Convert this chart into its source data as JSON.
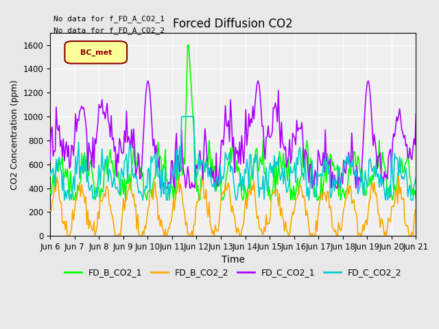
{
  "title": "Forced Diffusion CO2",
  "xlabel": "Time",
  "ylabel": "CO2 Concentration (ppm)",
  "ylim": [
    0,
    1700
  ],
  "yticks": [
    0,
    200,
    400,
    600,
    800,
    1000,
    1200,
    1400,
    1600
  ],
  "text_no_data_1": "No data for f_FD_A_CO2_1",
  "text_no_data_2": "No data for f_FD_A_CO2_2",
  "legend_label": "BC_met",
  "legend_entries": [
    "FD_B_CO2_1",
    "FD_B_CO2_2",
    "FD_C_CO2_1",
    "FD_C_CO2_2"
  ],
  "colors": {
    "FD_B_CO2_1": "#00ff00",
    "FD_B_CO2_2": "#ffa500",
    "FD_C_CO2_1": "#aa00ff",
    "FD_C_CO2_2": "#00cccc"
  },
  "background_color": "#e8e8e8",
  "plot_bg_color": "#f0f0f0",
  "n_days": 15,
  "seed": 42
}
